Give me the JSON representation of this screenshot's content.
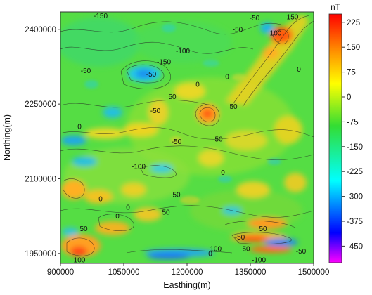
{
  "chart_data": {
    "type": "heatmap",
    "xlabel": "Easthing(m)",
    "ylabel": "Northing(m)",
    "x_ticks": [
      {
        "value": 900000,
        "label": "900000"
      },
      {
        "value": 1050000,
        "label": "1050000"
      },
      {
        "value": 1200000,
        "label": "1200000"
      },
      {
        "value": 1350000,
        "label": "1350000"
      },
      {
        "value": 1500000,
        "label": "1500000"
      }
    ],
    "y_ticks": [
      {
        "value": 1950000,
        "label": "1950000"
      },
      {
        "value": 2100000,
        "label": "2100000"
      },
      {
        "value": 2250000,
        "label": "2250000"
      },
      {
        "value": 2400000,
        "label": "2400000"
      }
    ],
    "xlim": [
      900000,
      1500000
    ],
    "ylim": [
      1930000,
      2435000
    ],
    "colorbar": {
      "unit": "nT",
      "range": [
        -500,
        250
      ],
      "ticks": [
        {
          "value": 225,
          "label": "225"
        },
        {
          "value": 150,
          "label": "150"
        },
        {
          "value": 75,
          "label": "75"
        },
        {
          "value": 0,
          "label": "0"
        },
        {
          "value": -75,
          "label": "-75"
        },
        {
          "value": -150,
          "label": "-150"
        },
        {
          "value": -225,
          "label": "-225"
        },
        {
          "value": -300,
          "label": "-300"
        },
        {
          "value": -375,
          "label": "-375"
        },
        {
          "value": -450,
          "label": "-450"
        }
      ],
      "colors": [
        "#ff00ff",
        "#0000ff",
        "#00ffff",
        "#33dd33",
        "#ffff00",
        "#ff8800",
        "#ff0000"
      ]
    },
    "contour_labels": [
      {
        "x": 995000,
        "y": 2422000,
        "text": "-150"
      },
      {
        "x": 1360000,
        "y": 2418000,
        "text": "-50"
      },
      {
        "x": 1450000,
        "y": 2420000,
        "text": "150"
      },
      {
        "x": 1320000,
        "y": 2395000,
        "text": "-50"
      },
      {
        "x": 1410000,
        "y": 2388000,
        "text": "100"
      },
      {
        "x": 1190000,
        "y": 2352000,
        "text": "-100"
      },
      {
        "x": 1145000,
        "y": 2330000,
        "text": "-150"
      },
      {
        "x": 1115000,
        "y": 2305000,
        "text": "-50"
      },
      {
        "x": 960000,
        "y": 2312000,
        "text": "-50"
      },
      {
        "x": 1465000,
        "y": 2315000,
        "text": "0"
      },
      {
        "x": 1165000,
        "y": 2260000,
        "text": "50"
      },
      {
        "x": 1225000,
        "y": 2285000,
        "text": "0"
      },
      {
        "x": 1295000,
        "y": 2300000,
        "text": "0"
      },
      {
        "x": 1125000,
        "y": 2232000,
        "text": "-50"
      },
      {
        "x": 1310000,
        "y": 2240000,
        "text": "50"
      },
      {
        "x": 945000,
        "y": 2200000,
        "text": "0"
      },
      {
        "x": 1175000,
        "y": 2170000,
        "text": "-50"
      },
      {
        "x": 1275000,
        "y": 2175000,
        "text": "50"
      },
      {
        "x": 1085000,
        "y": 2120000,
        "text": "-100"
      },
      {
        "x": 1285000,
        "y": 2108000,
        "text": "0"
      },
      {
        "x": 1175000,
        "y": 2063000,
        "text": "50"
      },
      {
        "x": 995000,
        "y": 2055000,
        "text": "0"
      },
      {
        "x": 1060000,
        "y": 2038000,
        "text": "0"
      },
      {
        "x": 1150000,
        "y": 2028000,
        "text": "50"
      },
      {
        "x": 1035000,
        "y": 2020000,
        "text": "0"
      },
      {
        "x": 955000,
        "y": 1995000,
        "text": "50"
      },
      {
        "x": 1325000,
        "y": 1978000,
        "text": "-50"
      },
      {
        "x": 1380000,
        "y": 1995000,
        "text": "50"
      },
      {
        "x": 1265000,
        "y": 1955000,
        "text": "-100"
      },
      {
        "x": 1340000,
        "y": 1955000,
        "text": "50"
      },
      {
        "x": 1255000,
        "y": 1945000,
        "text": "0"
      },
      {
        "x": 1370000,
        "y": 1932000,
        "text": "-100"
      },
      {
        "x": 1470000,
        "y": 1950000,
        "text": "-50"
      },
      {
        "x": 945000,
        "y": 1932000,
        "text": "100"
      }
    ]
  }
}
